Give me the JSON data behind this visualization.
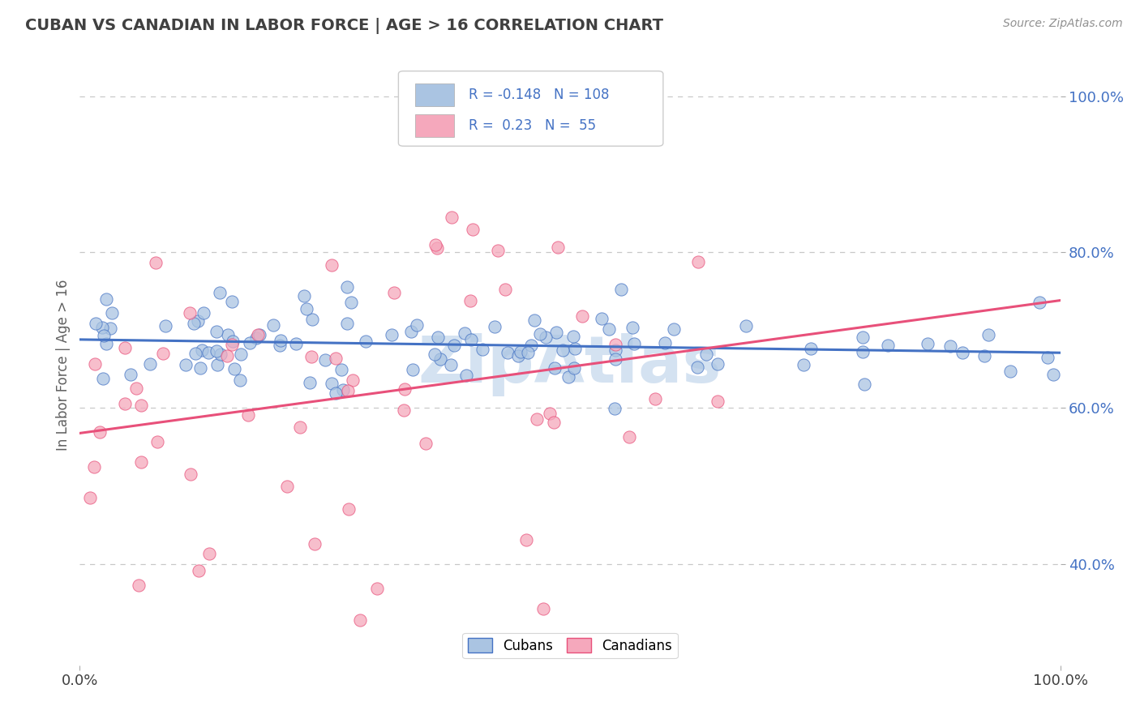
{
  "title": "CUBAN VS CANADIAN IN LABOR FORCE | AGE > 16 CORRELATION CHART",
  "source_text": "Source: ZipAtlas.com",
  "ylabel": "In Labor Force | Age > 16",
  "xlim": [
    0.0,
    1.0
  ],
  "ylim": [
    0.27,
    1.04
  ],
  "x_tick_labels": [
    "0.0%",
    "100.0%"
  ],
  "y_ticks_right": [
    0.4,
    0.6,
    0.8,
    1.0
  ],
  "y_tick_labels_right": [
    "40.0%",
    "60.0%",
    "80.0%",
    "100.0%"
  ],
  "cubans_R": -0.148,
  "cubans_N": 108,
  "canadians_R": 0.23,
  "canadians_N": 55,
  "cuban_color": "#aac4e2",
  "canadian_color": "#f5a8bc",
  "cuban_line_color": "#4472c4",
  "canadian_line_color": "#e8507a",
  "background_color": "#ffffff",
  "grid_color": "#c8c8c8",
  "watermark_color": "#b8cfe8",
  "title_color": "#404040",
  "source_color": "#909090",
  "legend_text_color": "#4472c4",
  "ylabel_color": "#606060"
}
